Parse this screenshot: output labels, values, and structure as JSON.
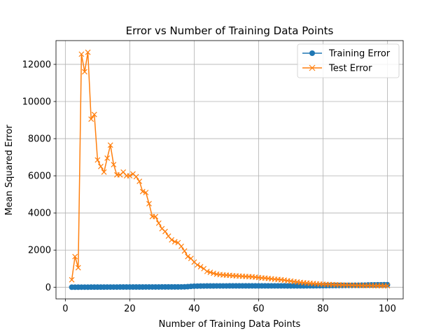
{
  "chart_data": {
    "type": "line",
    "title": "Error vs Number of Training Data Points",
    "xlabel": "Number of Training Data Points",
    "ylabel": "Mean Squared Error",
    "xlim": [
      -2.9,
      104.9
    ],
    "ylim": [
      -630,
      13280
    ],
    "xticks": [
      0,
      20,
      40,
      60,
      80,
      100
    ],
    "yticks": [
      0,
      2000,
      4000,
      6000,
      8000,
      10000,
      12000
    ],
    "grid": true,
    "legend_position": "top-right",
    "x": [
      2,
      3,
      4,
      5,
      6,
      7,
      8,
      9,
      10,
      11,
      12,
      13,
      14,
      15,
      16,
      17,
      18,
      19,
      20,
      21,
      22,
      23,
      24,
      25,
      26,
      27,
      28,
      29,
      30,
      31,
      32,
      33,
      34,
      35,
      36,
      37,
      38,
      39,
      40,
      41,
      42,
      43,
      44,
      45,
      46,
      47,
      48,
      49,
      50,
      51,
      52,
      53,
      54,
      55,
      56,
      57,
      58,
      59,
      60,
      61,
      62,
      63,
      64,
      65,
      66,
      67,
      68,
      69,
      70,
      71,
      72,
      73,
      74,
      75,
      76,
      77,
      78,
      79,
      80,
      81,
      82,
      83,
      84,
      85,
      86,
      87,
      88,
      89,
      90,
      91,
      92,
      93,
      94,
      95,
      96,
      97,
      98,
      99,
      100
    ],
    "series": [
      {
        "name": "Training Error",
        "color": "#1f77b4",
        "marker": "circle",
        "values": [
          0,
          0,
          1,
          2,
          3,
          3,
          4,
          5,
          5,
          6,
          6,
          7,
          7,
          8,
          8,
          9,
          9,
          10,
          10,
          10,
          11,
          11,
          11,
          12,
          12,
          12,
          13,
          13,
          14,
          14,
          15,
          15,
          16,
          16,
          17,
          18,
          30,
          45,
          55,
          60,
          62,
          64,
          65,
          66,
          67,
          68,
          68,
          69,
          69,
          70,
          70,
          70,
          70,
          71,
          71,
          71,
          71,
          71,
          71,
          71,
          71,
          71,
          70,
          70,
          70,
          70,
          70,
          69,
          69,
          70,
          70,
          71,
          72,
          73,
          75,
          77,
          79,
          81,
          83,
          85,
          87,
          89,
          91,
          93,
          95,
          97,
          99,
          101,
          103,
          105,
          108,
          112,
          118,
          122,
          126,
          128,
          130,
          132,
          133
        ]
      },
      {
        "name": "Test Error",
        "color": "#ff7f0e",
        "marker": "x",
        "values": [
          400,
          1650,
          1050,
          12550,
          11600,
          12650,
          9050,
          9300,
          6850,
          6500,
          6200,
          6950,
          7650,
          6600,
          6050,
          6050,
          6200,
          6000,
          6000,
          6100,
          5950,
          5700,
          5150,
          5100,
          4500,
          3800,
          3800,
          3450,
          3150,
          3000,
          2750,
          2550,
          2450,
          2400,
          2200,
          1950,
          1650,
          1550,
          1350,
          1200,
          1100,
          1000,
          850,
          800,
          750,
          700,
          680,
          660,
          650,
          640,
          620,
          610,
          600,
          590,
          580,
          570,
          560,
          540,
          520,
          500,
          490,
          470,
          450,
          430,
          420,
          400,
          380,
          350,
          330,
          300,
          280,
          260,
          240,
          225,
          210,
          195,
          180,
          170,
          160,
          150,
          145,
          140,
          130,
          125,
          120,
          115,
          110,
          105,
          100,
          95,
          90,
          88,
          86,
          84,
          82,
          80,
          78,
          77,
          75
        ]
      }
    ]
  }
}
